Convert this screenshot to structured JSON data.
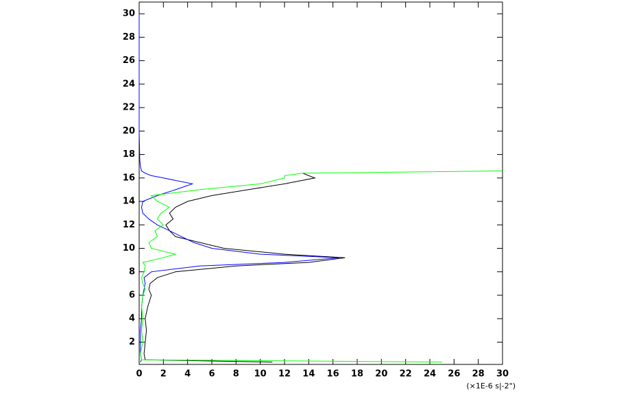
{
  "chart_data": {
    "type": "line",
    "x_label": "(×1E-6 s|-2\")",
    "y": [
      0.3,
      0.5,
      1,
      2,
      3,
      4,
      5,
      6,
      6.5,
      7,
      7.5,
      8,
      8.5,
      8.8,
      9.2,
      9.5,
      10,
      10.5,
      11,
      11.5,
      12,
      12.5,
      13,
      13.5,
      14,
      14.5,
      15,
      15.5,
      16,
      16.2,
      16.4,
      16.6,
      17,
      17.5,
      20,
      25,
      30
    ],
    "series": [
      {
        "color": "#000000",
        "values": [
          11,
          0.5,
          0.4,
          0.5,
          0.6,
          0.5,
          0.7,
          1,
          0.8,
          0.9,
          1.5,
          3,
          8,
          14,
          17,
          12,
          7,
          5,
          3,
          2.5,
          2.2,
          2.8,
          2.5,
          3,
          4,
          6,
          9,
          12,
          14.5,
          14,
          13.5,
          null,
          null,
          null,
          null,
          null,
          null
        ]
      },
      {
        "color": "#0000ff",
        "values": [
          0.1,
          0.2,
          0.1,
          0.1,
          0.1,
          0.2,
          0.2,
          0.3,
          0.4,
          0.5,
          0.4,
          1,
          5,
          12,
          16.5,
          10,
          6,
          4.5,
          3.5,
          2.5,
          1.5,
          0.8,
          0.3,
          0.2,
          0.3,
          1.5,
          3,
          4.4,
          2,
          1,
          0.5,
          0.2,
          0.1,
          0.05,
          0,
          0,
          0
        ]
      },
      {
        "color": "#00ff00",
        "values": [
          25,
          0.2,
          0.1,
          0.3,
          0.2,
          0.3,
          0.2,
          0.3,
          0.5,
          0.3,
          0.2,
          0.4,
          0.5,
          0.3,
          2,
          3,
          1,
          0.8,
          1.5,
          1.3,
          2,
          1.5,
          1.8,
          2.5,
          1.5,
          1,
          5,
          10,
          12,
          12,
          13.5,
          30,
          null,
          null,
          null,
          null,
          null
        ]
      }
    ],
    "xlim": [
      0,
      30
    ],
    "xticks": [
      0,
      2,
      4,
      6,
      8,
      10,
      12,
      14,
      16,
      18,
      20,
      22,
      24,
      26,
      28,
      30
    ],
    "ylim": [
      0.1,
      31
    ],
    "yticks": [
      2,
      4,
      6,
      8,
      10,
      12,
      14,
      16,
      18,
      20,
      22,
      24,
      26,
      28,
      30
    ]
  }
}
